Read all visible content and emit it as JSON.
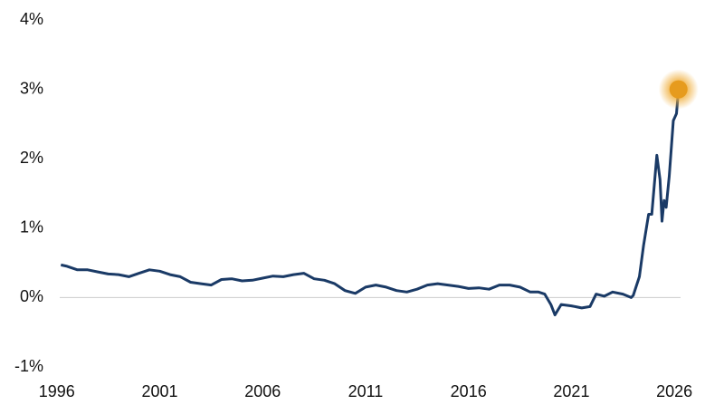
{
  "chart_data": {
    "type": "line",
    "x": [
      1996.2,
      1996.5,
      1997,
      1997.5,
      1998,
      1998.5,
      1999,
      1999.5,
      2000,
      2000.5,
      2001,
      2001.5,
      2002,
      2002.5,
      2003,
      2003.5,
      2004,
      2004.5,
      2005,
      2005.5,
      2006,
      2006.5,
      2007,
      2007.5,
      2008,
      2008.5,
      2009,
      2009.5,
      2010,
      2010.5,
      2011,
      2011.5,
      2012,
      2012.5,
      2013,
      2013.5,
      2014,
      2014.5,
      2015,
      2015.5,
      2016,
      2016.5,
      2017,
      2017.5,
      2018,
      2018.5,
      2019,
      2019.4,
      2019.7,
      2020,
      2020.2,
      2020.5,
      2021,
      2021.5,
      2021.9,
      2022.2,
      2022.6,
      2023,
      2023.5,
      2023.9,
      2024,
      2024.3,
      2024.5,
      2024.75,
      2024.9,
      2025.15,
      2025.3,
      2025.4,
      2025.5,
      2025.6,
      2025.75,
      2025.95,
      2026.1,
      2026.2
    ],
    "values": [
      0.47,
      0.45,
      0.4,
      0.4,
      0.37,
      0.34,
      0.33,
      0.3,
      0.35,
      0.4,
      0.38,
      0.33,
      0.3,
      0.22,
      0.2,
      0.18,
      0.26,
      0.27,
      0.24,
      0.25,
      0.28,
      0.31,
      0.3,
      0.33,
      0.35,
      0.27,
      0.25,
      0.2,
      0.1,
      0.06,
      0.15,
      0.18,
      0.15,
      0.1,
      0.08,
      0.12,
      0.18,
      0.2,
      0.18,
      0.16,
      0.13,
      0.14,
      0.12,
      0.18,
      0.18,
      0.15,
      0.08,
      0.08,
      0.05,
      -0.1,
      -0.25,
      -0.1,
      -0.12,
      -0.15,
      -0.13,
      0.05,
      0.02,
      0.08,
      0.05,
      0.0,
      0.03,
      0.3,
      0.75,
      1.2,
      1.2,
      2.05,
      1.7,
      1.1,
      1.4,
      1.3,
      1.75,
      2.55,
      2.65,
      3.0
    ],
    "color": "#1a3a66",
    "marker_color": "#e69b1e",
    "xlim": [
      1995,
      2026.3
    ],
    "ylim": [
      -1,
      4
    ],
    "xticks": [
      1996,
      2001,
      2006,
      2011,
      2016,
      2021,
      2026
    ],
    "yticks": [
      {
        "value": -1,
        "label": "-1%"
      },
      {
        "value": 0,
        "label": "0%"
      },
      {
        "value": 1,
        "label": "1%"
      },
      {
        "value": 2,
        "label": "2%"
      },
      {
        "value": 3,
        "label": "3%"
      },
      {
        "value": 4,
        "label": "4%"
      }
    ],
    "zero_line": true
  }
}
